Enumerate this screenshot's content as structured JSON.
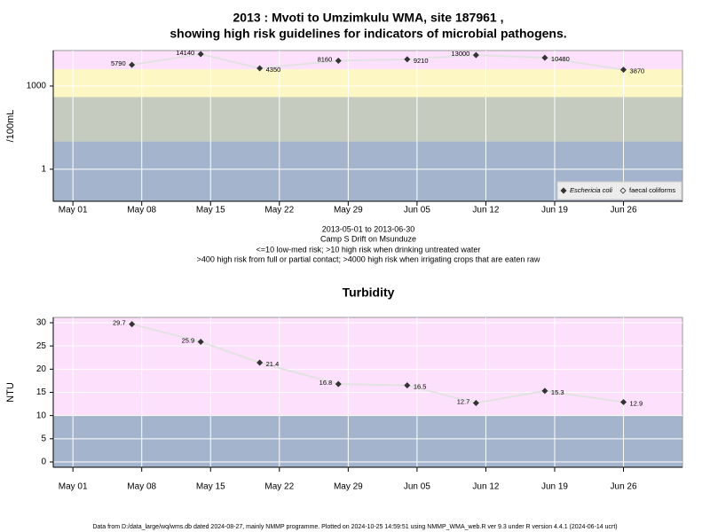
{
  "chart_data": [
    {
      "type": "line",
      "title": [
        "2013 : Mvoti to Umzimkulu WMA, site 187961 ,",
        "showing high risk guidelines for indicators of microbial pathogens."
      ],
      "ylabel": "/100mL",
      "log_y": true,
      "grid": true,
      "legend": "lower right",
      "x": [
        "May 07",
        "May 14",
        "May 20",
        "May 28",
        "Jun 04",
        "Jun 11",
        "Jun 18",
        "Jun 26"
      ],
      "xlim": [
        "Apr 29",
        "Jul 02"
      ],
      "xticks": [
        "May 01",
        "May 08",
        "May 15",
        "May 22",
        "May 29",
        "Jun 05",
        "Jun 12",
        "Jun 19",
        "Jun 26"
      ],
      "ylim": [
        0.07,
        19000
      ],
      "yticks": [
        1,
        1000
      ],
      "thresholds": [
        10,
        400,
        4000
      ],
      "band_colors": [
        "#a3b4cc",
        "#c5cbbf",
        "#fdf7c3",
        "#fde0fb"
      ],
      "series": [
        {
          "name": "Eschericia coli",
          "color": "#333333",
          "values": [
            5790,
            14140,
            4350,
            8160,
            9210,
            13000,
            10480,
            3870
          ]
        },
        {
          "name": "faecal coliforms",
          "color": "#333333",
          "values": [
            null,
            null,
            null,
            null,
            null,
            null,
            null,
            null
          ]
        }
      ],
      "notes": [
        "2013-05-01 to 2013-06-30",
        "Camp S Drift on Msunduze",
        "<=10 low-med risk; >10 high risk when drinking untreated water",
        ">400 high risk from full or partial contact; >4000 high risk when irrigating crops that are eaten raw"
      ]
    },
    {
      "type": "line",
      "title": [
        "Turbidity"
      ],
      "ylabel": "NTU",
      "log_y": false,
      "grid": true,
      "x": [
        "May 07",
        "May 14",
        "May 20",
        "May 28",
        "Jun 04",
        "Jun 11",
        "Jun 18",
        "Jun 26"
      ],
      "xlim": [
        "Apr 29",
        "Jul 02"
      ],
      "xticks": [
        "May 01",
        "May 08",
        "May 15",
        "May 22",
        "May 29",
        "Jun 05",
        "Jun 12",
        "Jun 19",
        "Jun 26"
      ],
      "ylim": [
        -1.15,
        31.15
      ],
      "yticks": [
        0,
        5,
        10,
        15,
        20,
        25,
        30
      ],
      "thresholds": [
        10
      ],
      "band_colors": [
        "#a3b4cc",
        "#fde0fb"
      ],
      "series": [
        {
          "name": "Turbidity",
          "color": "#333333",
          "values": [
            29.7,
            25.9,
            21.4,
            16.8,
            16.5,
            12.7,
            15.3,
            12.9
          ]
        }
      ]
    }
  ],
  "footer": "Data from D:/data_large/wq/wms.db dated 2024-08-27, mainly NMMP programme. Plotted on 2024-10-25 14:59:51 using NMMP_WMA_web.R ver 9.3 under R version 4.4.1 (2024-06-14 ucrt)"
}
